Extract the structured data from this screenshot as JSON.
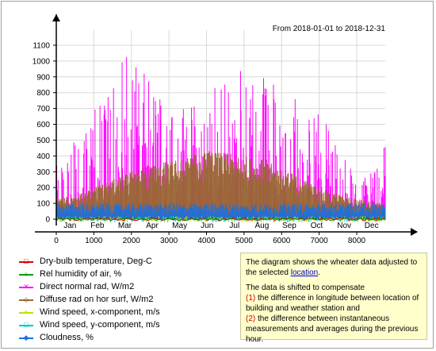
{
  "header": {
    "date_range": "From 2018-01-01 to 2018-12-31"
  },
  "chart_data": {
    "type": "line",
    "x_ticks": [
      0,
      1000,
      2000,
      3000,
      4000,
      5000,
      6000,
      7000,
      8000
    ],
    "y_ticks": [
      0,
      100,
      200,
      300,
      400,
      500,
      600,
      700,
      800,
      900,
      1000,
      1100
    ],
    "xlim": [
      0,
      8760
    ],
    "ylim": [
      -30,
      1170
    ],
    "months": [
      "Jan",
      "Feb",
      "Mar",
      "Apr",
      "May",
      "Jun",
      "Jul",
      "Aug",
      "Sep",
      "Oct",
      "Nov",
      "Dec"
    ],
    "grid": true,
    "series": [
      {
        "name": "Dry-bulb temperature, Deg-C",
        "color": "#e00000",
        "marker": "square",
        "envelope_x": [
          0,
          1000,
          2000,
          3000,
          4000,
          5000,
          6000,
          7000,
          8000,
          8760
        ],
        "envelope_max": [
          5,
          8,
          12,
          16,
          22,
          28,
          26,
          18,
          10,
          5
        ]
      },
      {
        "name": "Rel humidity of air, %",
        "color": "#00a000",
        "marker": "circle",
        "envelope_x": [
          0,
          8760
        ],
        "envelope_max": [
          100,
          100
        ]
      },
      {
        "name": "Direct normal rad, W/m2",
        "color": "#ff00ff",
        "marker": "x",
        "envelope_x": [
          0,
          500,
          1000,
          1500,
          2000,
          2500,
          3000,
          3500,
          4000,
          4500,
          5000,
          5500,
          6000,
          6500,
          7000,
          7500,
          8000,
          8500,
          8760
        ],
        "envelope_max": [
          400,
          550,
          750,
          900,
          1120,
          900,
          750,
          700,
          800,
          900,
          1000,
          950,
          850,
          750,
          700,
          450,
          300,
          300,
          500
        ]
      },
      {
        "name": "Diffuse rad on hor surf, W/m2",
        "color": "#996633",
        "marker": "diamond",
        "envelope_x": [
          0,
          500,
          1000,
          1500,
          2000,
          2500,
          3000,
          3500,
          4000,
          4500,
          5000,
          5500,
          6000,
          6500,
          7000,
          7500,
          8000,
          8500,
          8760
        ],
        "envelope_max": [
          130,
          150,
          200,
          250,
          300,
          350,
          370,
          400,
          440,
          420,
          400,
          380,
          320,
          270,
          200,
          160,
          130,
          110,
          100
        ]
      },
      {
        "name": "Wind speed, x-component, m/s",
        "color": "#c0e000",
        "marker": "plus",
        "envelope_x": [
          0,
          8760
        ],
        "envelope_max": [
          20,
          20
        ]
      },
      {
        "name": "Wind speed, y-component, m/s",
        "color": "#00c8c8",
        "marker": "square-open",
        "envelope_x": [
          0,
          8760
        ],
        "envelope_max": [
          20,
          20
        ]
      },
      {
        "name": "Cloudness, %",
        "color": "#1a70e0",
        "marker": "diamond-small",
        "envelope_x": [
          0,
          8760
        ],
        "envelope_max": [
          100,
          100
        ]
      }
    ]
  },
  "note": {
    "line1": "The diagram shows the wheater data adjusted to the selected ",
    "link": "location",
    "line1_end": ".",
    "line2": "The data is shifted to compensate",
    "item1_num": "(1)",
    "item1": " the difference in longitude between location of building and weather station and",
    "item2_num": "(2)",
    "item2": " the difference between instantaneous measurements and averages during the previous  hour."
  }
}
